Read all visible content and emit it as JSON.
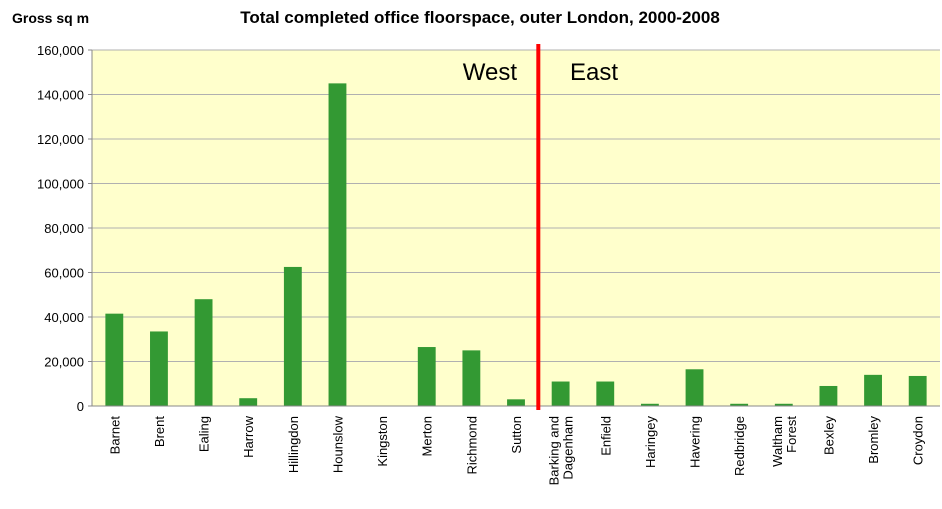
{
  "chart_data": {
    "type": "bar",
    "title": "Total completed office floorspace,  outer London, 2000-2008",
    "y_label": "Gross sq m",
    "annotations": [
      "West",
      "East"
    ],
    "categories": [
      "Barnet",
      "Brent",
      "Ealing",
      "Harrow",
      "Hillingdon",
      "Hounslow",
      "Kingston",
      "Merton",
      "Richmond",
      "Sutton",
      "Barking and\nDagenham",
      "Enfield",
      "Haringey",
      "Havering",
      "Redbridge",
      "Waltham\nForest",
      "Bexley",
      "Bromley",
      "Croydon"
    ],
    "values": [
      41500,
      33500,
      48000,
      3500,
      62500,
      145000,
      0,
      26500,
      25000,
      3000,
      11000,
      11000,
      1000,
      16500,
      1000,
      1000,
      9000,
      14000,
      13500
    ],
    "color": "#339933",
    "ylim": [
      0,
      160000
    ],
    "yticks": [
      0,
      {
        "value": 20000,
        "label": "20,000"
      },
      {
        "value": 40000,
        "label": "40,000"
      },
      {
        "value": 60000,
        "label": "60,000"
      },
      {
        "value": 80000,
        "label": "80,000"
      },
      {
        "value": 100000,
        "label": "100,000"
      },
      {
        "value": 120000,
        "label": "120,000"
      },
      {
        "value": 140000,
        "label": "140,000"
      },
      {
        "value": 160000,
        "label": "160,000"
      }
    ],
    "grid": true
  }
}
